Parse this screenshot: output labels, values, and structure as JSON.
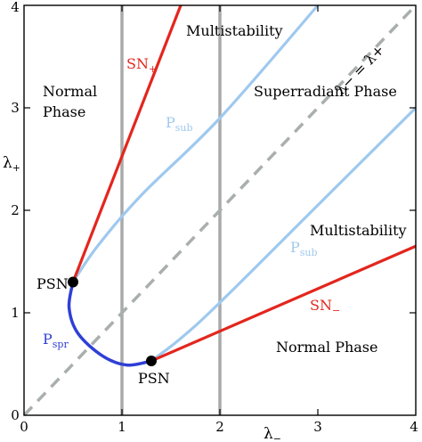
{
  "diagram": {
    "x_axis": {
      "label_main": "λ",
      "label_sub": "−",
      "ticks": [
        "0",
        "1",
        "2",
        "3",
        "4"
      ],
      "range": [
        0,
        4
      ]
    },
    "y_axis": {
      "label_main": "λ",
      "label_sub": "+",
      "ticks": [
        "0",
        "1",
        "2",
        "3",
        "4"
      ],
      "range": [
        0,
        4
      ]
    },
    "regions": {
      "normal_phase_top_line1": "Normal",
      "normal_phase_top_line2": "Phase",
      "multistability_top": "Multistability",
      "superradiant": "Superradiant Phase",
      "multistability_right": "Multistability",
      "normal_phase_bottom": "Normal Phase"
    },
    "curve_labels": {
      "sn_plus_main": "SN",
      "sn_plus_sub": "+",
      "sn_minus_main": "SN",
      "sn_minus_sub": "−",
      "p_sub_top_main": "P",
      "p_sub_top_sub": "sub",
      "p_sub_bottom_main": "P",
      "p_sub_bottom_sub": "sub",
      "p_spr_main": "P",
      "p_spr_sub": "spr",
      "diagonal": "λ− = λ+"
    },
    "points": {
      "psn_upper_label": "PSN",
      "psn_lower_label": "PSN",
      "psn_upper": [
        0.5,
        1.3
      ],
      "psn_lower": [
        1.3,
        0.53
      ]
    },
    "vertical_lines_at": [
      1,
      2
    ],
    "curves": {
      "sn_plus": [
        [
          0.5,
          1.3
        ],
        [
          1.6,
          4.0
        ]
      ],
      "sn_minus": [
        [
          1.3,
          0.53
        ],
        [
          4.0,
          1.65
        ]
      ],
      "p_sub_upper": [
        [
          0.5,
          1.3
        ],
        [
          0.75,
          1.65
        ],
        [
          1.2,
          2.15
        ],
        [
          2.0,
          2.9
        ],
        [
          3.0,
          4.0
        ]
      ],
      "p_sub_lower": [
        [
          1.3,
          0.53
        ],
        [
          1.6,
          0.75
        ],
        [
          2.0,
          1.1
        ],
        [
          3.0,
          2.05
        ],
        [
          4.0,
          3.0
        ]
      ],
      "p_spr": [
        [
          0.5,
          1.3
        ],
        [
          0.46,
          1.05
        ],
        [
          0.55,
          0.8
        ],
        [
          0.8,
          0.58
        ],
        [
          1.05,
          0.49
        ],
        [
          1.3,
          0.53
        ]
      ]
    },
    "colors": {
      "sn": "#e3261d",
      "p_sub": "#9fc9ee",
      "p_spr": "#2f3fd6",
      "grid_vertical": "#a8aaa9",
      "diagonal": "#a9afac",
      "point": "#000000"
    }
  }
}
